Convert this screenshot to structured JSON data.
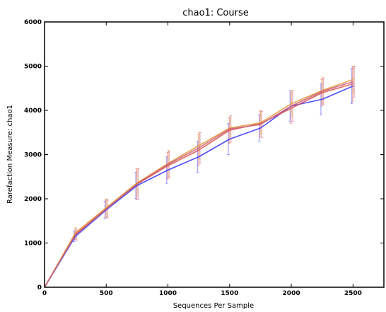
{
  "chart_data": {
    "type": "line",
    "title": "chao1: Course",
    "xlabel": "Sequences Per Sample",
    "ylabel": "Rarefaction Measure: chao1",
    "xlim": [
      0,
      2750
    ],
    "ylim": [
      0,
      6000
    ],
    "xticks": [
      0,
      500,
      1000,
      1500,
      2000,
      2500
    ],
    "yticks": [
      0,
      1000,
      2000,
      3000,
      4000,
      5000,
      6000
    ],
    "x": [
      0,
      250,
      500,
      750,
      1000,
      1250,
      1500,
      1750,
      2000,
      2250,
      2500
    ],
    "grid": false,
    "legend": "none",
    "error_bars": true,
    "series": [
      {
        "color": "#3b3bff",
        "values": [
          0,
          1150,
          1750,
          2300,
          2650,
          2950,
          3350,
          3600,
          4100,
          4250,
          4550
        ],
        "errors": [
          0,
          120,
          200,
          300,
          300,
          350,
          350,
          300,
          350,
          350,
          400
        ]
      },
      {
        "color": "#e05050",
        "values": [
          0,
          1200,
          1780,
          2330,
          2750,
          3100,
          3550,
          3700,
          4050,
          4400,
          4600
        ],
        "errors": [
          0,
          120,
          200,
          350,
          300,
          350,
          300,
          300,
          350,
          300,
          400
        ]
      },
      {
        "color": "#e59a3c",
        "values": [
          0,
          1230,
          1800,
          2360,
          2800,
          3200,
          3600,
          3720,
          4150,
          4450,
          4700
        ],
        "errors": [
          0,
          120,
          200,
          300,
          300,
          300,
          250,
          250,
          300,
          300,
          300
        ]
      },
      {
        "color": "#c8607a",
        "values": [
          0,
          1180,
          1770,
          2340,
          2780,
          3150,
          3580,
          3680,
          4100,
          4430,
          4650
        ],
        "errors": [
          0,
          120,
          200,
          350,
          300,
          350,
          300,
          300,
          350,
          300,
          350
        ]
      }
    ]
  }
}
